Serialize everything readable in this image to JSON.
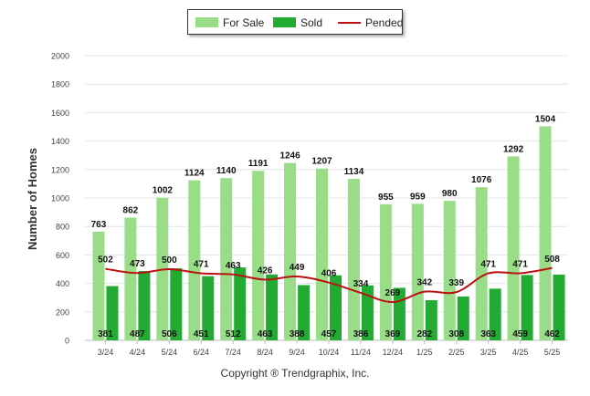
{
  "chart_data": {
    "type": "bar",
    "ylabel": "Number of Homes",
    "ylim": [
      0,
      2000
    ],
    "yticks": [
      0,
      200,
      400,
      600,
      800,
      1000,
      1200,
      1400,
      1600,
      1800,
      2000
    ],
    "grid": true,
    "legend_placement": "top-center",
    "categories": [
      "3/24",
      "4/24",
      "5/24",
      "6/24",
      "7/24",
      "8/24",
      "9/24",
      "10/24",
      "11/24",
      "12/24",
      "1/25",
      "2/25",
      "3/25",
      "4/25",
      "5/25"
    ],
    "series": [
      {
        "name": "For Sale",
        "kind": "bar",
        "color": "#99dd88",
        "values": [
          763,
          862,
          1002,
          1124,
          1140,
          1191,
          1246,
          1207,
          1134,
          955,
          959,
          980,
          1076,
          1292,
          1504
        ]
      },
      {
        "name": "Sold",
        "kind": "bar",
        "color": "#22aa33",
        "values": [
          381,
          487,
          506,
          451,
          512,
          463,
          388,
          457,
          386,
          369,
          282,
          308,
          363,
          459,
          462
        ]
      },
      {
        "name": "Pended",
        "kind": "line",
        "color": "#bb1111",
        "values": [
          502,
          473,
          500,
          471,
          463,
          426,
          449,
          406,
          334,
          269,
          342,
          339,
          471,
          471,
          508
        ]
      }
    ]
  },
  "legend": {
    "for_sale": "For Sale",
    "sold": "Sold",
    "pended": "Pended"
  },
  "copyright": "Copyright ® Trendgraphix, Inc."
}
